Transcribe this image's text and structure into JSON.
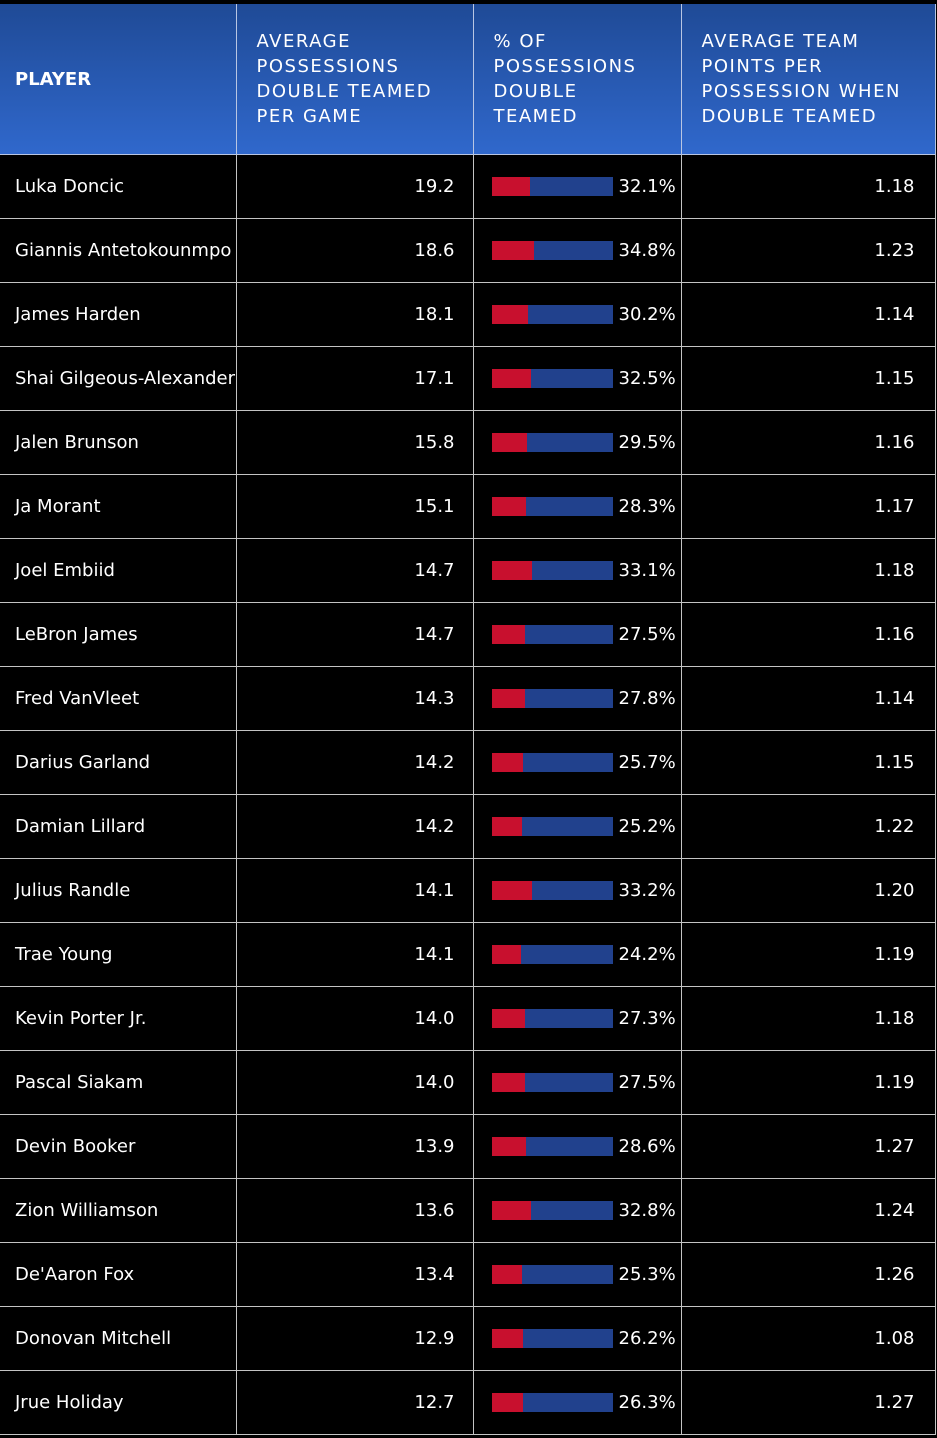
{
  "colors": {
    "header_top": "#1f4a96",
    "header_bottom": "#3068cc",
    "bar_fill": "#c8102e",
    "bar_track": "#21418d",
    "background": "#000000"
  },
  "chart_data": {
    "type": "table",
    "columns": [
      "PLAYER",
      "AVERAGE POSSESSIONS DOUBLE TEAMED PER GAME",
      "% OF POSSESSIONS DOUBLE TEAMED",
      "AVERAGE TEAM POINTS PER POSSESSION WHEN DOUBLE TEAMED"
    ],
    "rows": [
      {
        "player": "Luka Doncic",
        "avg": "19.2",
        "pct": "32.1%",
        "pct_value": 32.1,
        "ppp": "1.18"
      },
      {
        "player": "Giannis Antetokounmpo",
        "avg": "18.6",
        "pct": "34.8%",
        "pct_value": 34.8,
        "ppp": "1.23"
      },
      {
        "player": "James Harden",
        "avg": "18.1",
        "pct": "30.2%",
        "pct_value": 30.2,
        "ppp": "1.14"
      },
      {
        "player": "Shai Gilgeous-Alexander",
        "avg": "17.1",
        "pct": "32.5%",
        "pct_value": 32.5,
        "ppp": "1.15"
      },
      {
        "player": "Jalen Brunson",
        "avg": "15.8",
        "pct": "29.5%",
        "pct_value": 29.5,
        "ppp": "1.16"
      },
      {
        "player": "Ja Morant",
        "avg": "15.1",
        "pct": "28.3%",
        "pct_value": 28.3,
        "ppp": "1.17"
      },
      {
        "player": "Joel Embiid",
        "avg": "14.7",
        "pct": "33.1%",
        "pct_value": 33.1,
        "ppp": "1.18"
      },
      {
        "player": "LeBron James",
        "avg": "14.7",
        "pct": "27.5%",
        "pct_value": 27.5,
        "ppp": "1.16"
      },
      {
        "player": "Fred VanVleet",
        "avg": "14.3",
        "pct": "27.8%",
        "pct_value": 27.8,
        "ppp": "1.14"
      },
      {
        "player": "Darius Garland",
        "avg": "14.2",
        "pct": "25.7%",
        "pct_value": 25.7,
        "ppp": "1.15"
      },
      {
        "player": "Damian Lillard",
        "avg": "14.2",
        "pct": "25.2%",
        "pct_value": 25.2,
        "ppp": "1.22"
      },
      {
        "player": "Julius Randle",
        "avg": "14.1",
        "pct": "33.2%",
        "pct_value": 33.2,
        "ppp": "1.20"
      },
      {
        "player": "Trae Young",
        "avg": "14.1",
        "pct": "24.2%",
        "pct_value": 24.2,
        "ppp": "1.19"
      },
      {
        "player": "Kevin Porter Jr.",
        "avg": "14.0",
        "pct": "27.3%",
        "pct_value": 27.3,
        "ppp": "1.18"
      },
      {
        "player": "Pascal Siakam",
        "avg": "14.0",
        "pct": "27.5%",
        "pct_value": 27.5,
        "ppp": "1.19"
      },
      {
        "player": "Devin Booker",
        "avg": "13.9",
        "pct": "28.6%",
        "pct_value": 28.6,
        "ppp": "1.27"
      },
      {
        "player": "Zion Williamson",
        "avg": "13.6",
        "pct": "32.8%",
        "pct_value": 32.8,
        "ppp": "1.24"
      },
      {
        "player": "De'Aaron Fox",
        "avg": "13.4",
        "pct": "25.3%",
        "pct_value": 25.3,
        "ppp": "1.26"
      },
      {
        "player": "Donovan Mitchell",
        "avg": "12.9",
        "pct": "26.2%",
        "pct_value": 26.2,
        "ppp": "1.08"
      },
      {
        "player": "Jrue Holiday",
        "avg": "12.7",
        "pct": "26.3%",
        "pct_value": 26.3,
        "ppp": "1.27"
      }
    ]
  }
}
